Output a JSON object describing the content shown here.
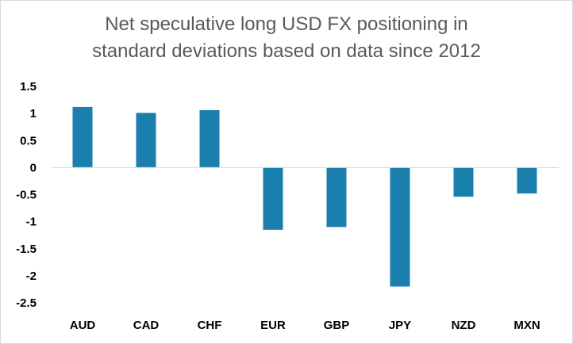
{
  "chart_data": {
    "type": "bar",
    "title_lines": [
      "Net speculative long USD FX positioning in",
      "standard deviations based on data since 2012"
    ],
    "xlabel": "",
    "ylabel": "",
    "categories": [
      "AUD",
      "CAD",
      "CHF",
      "EUR",
      "GBP",
      "JPY",
      "NZD",
      "MXN"
    ],
    "values": [
      1.12,
      1.01,
      1.06,
      -1.15,
      -1.1,
      -2.2,
      -0.54,
      -0.48
    ],
    "ylim": [
      -2.5,
      1.5
    ],
    "yticks": [
      "1.5",
      "1",
      "0.5",
      "0",
      "-0.5",
      "-1",
      "-1.5",
      "-2",
      "-2.5"
    ],
    "bar_color": "#1a7fad",
    "grid": false,
    "legend": "none"
  }
}
